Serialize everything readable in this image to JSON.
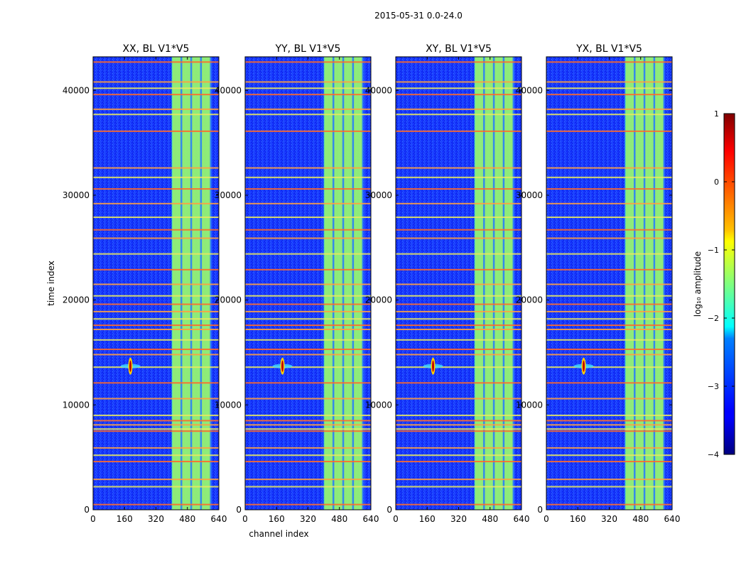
{
  "figure": {
    "suptitle": "2015-05-31 0.0-24.0"
  },
  "chart_data": [
    {
      "type": "heatmap",
      "title": "XX, BL V1*V5",
      "xlabel": "",
      "ylabel": "time index",
      "xlim": [
        0,
        640
      ],
      "ylim": [
        0,
        43200
      ],
      "xticks": [
        0,
        160,
        320,
        480,
        640
      ],
      "yticks": [
        0,
        10000,
        20000,
        30000,
        40000
      ],
      "show_ytick_labels": true,
      "bright_bands_x": [
        [
          400,
          600
        ]
      ],
      "point_source": {
        "x": 190,
        "y": 13700
      }
    },
    {
      "type": "heatmap",
      "title": "YY, BL V1*V5",
      "xlabel": "channel index",
      "ylabel": "",
      "xlim": [
        0,
        640
      ],
      "ylim": [
        0,
        43200
      ],
      "xticks": [
        0,
        160,
        320,
        480,
        640
      ],
      "yticks": [
        0,
        10000,
        20000,
        30000,
        40000
      ],
      "show_ytick_labels": true,
      "bright_bands_x": [
        [
          400,
          600
        ]
      ],
      "point_source": {
        "x": 190,
        "y": 13700
      }
    },
    {
      "type": "heatmap",
      "title": "XY, BL V1*V5",
      "xlabel": "",
      "ylabel": "",
      "xlim": [
        0,
        640
      ],
      "ylim": [
        0,
        43200
      ],
      "xticks": [
        0,
        160,
        320,
        480,
        640
      ],
      "yticks": [
        0,
        10000,
        20000,
        30000,
        40000
      ],
      "show_ytick_labels": true,
      "bright_bands_x": [
        [
          400,
          600
        ]
      ],
      "point_source": {
        "x": 190,
        "y": 13700
      }
    },
    {
      "type": "heatmap",
      "title": "YX, BL V1*V5",
      "xlabel": "",
      "ylabel": "",
      "xlim": [
        0,
        640
      ],
      "ylim": [
        0,
        43200
      ],
      "xticks": [
        0,
        160,
        320,
        480,
        640
      ],
      "yticks": [
        0,
        10000,
        20000,
        30000,
        40000
      ],
      "show_ytick_labels": true,
      "bright_bands_x": [
        [
          400,
          600
        ]
      ],
      "point_source": {
        "x": 190,
        "y": 13700
      }
    }
  ],
  "rfi_lines_y": [
    500,
    2200,
    2900,
    4600,
    5200,
    5900,
    7500,
    7700,
    8100,
    8500,
    9000,
    10600,
    12100,
    13600,
    14800,
    15300,
    16200,
    17200,
    17600,
    18200,
    18900,
    19600,
    20400,
    21500,
    22900,
    24400,
    25900,
    26700,
    27900,
    29200,
    30600,
    31700,
    32600,
    36100,
    37700,
    38200,
    39600,
    40200,
    40800,
    42700
  ],
  "colorbar": {
    "label": "log₁₀ amplitude",
    "min": -4,
    "max": 1,
    "ticks": [
      1,
      0,
      -1,
      -2,
      -3,
      -4
    ],
    "tick_labels": [
      "1",
      "0",
      "−1",
      "−2",
      "−3",
      "−4"
    ]
  }
}
